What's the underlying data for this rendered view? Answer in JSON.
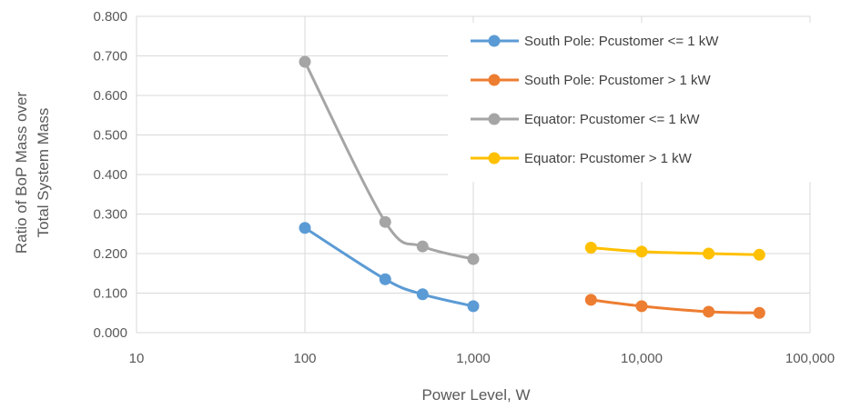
{
  "chart_data": {
    "type": "line",
    "xscale": "log",
    "xlim": [
      10,
      100000
    ],
    "ylim": [
      0,
      0.8
    ],
    "yticks": [
      "0.000",
      "0.100",
      "0.200",
      "0.300",
      "0.400",
      "0.500",
      "0.600",
      "0.700",
      "0.800"
    ],
    "xticks": [
      "10",
      "100",
      "1,000",
      "10,000",
      "100,000"
    ],
    "xlabel": "Power Level, W",
    "ylabel_line1": "Ratio of BoP Mass over",
    "ylabel_line2": "Total System Mass",
    "grid": true,
    "legend_position": "top-right",
    "series": [
      {
        "name": "South Pole: Pcustomer <= 1 kW",
        "color": "#5b9bd5",
        "x": [
          100,
          300,
          500,
          1000
        ],
        "y": [
          0.265,
          0.135,
          0.097,
          0.067
        ]
      },
      {
        "name": "South Pole: Pcustomer > 1 kW",
        "color": "#ed7d31",
        "x": [
          5000,
          10000,
          25000,
          50000
        ],
        "y": [
          0.083,
          0.067,
          0.053,
          0.05
        ]
      },
      {
        "name": "Equator: Pcustomer <= 1 kW",
        "color": "#a5a5a5",
        "x": [
          100,
          300,
          500,
          1000
        ],
        "y": [
          0.685,
          0.28,
          0.218,
          0.186
        ]
      },
      {
        "name": "Equator: Pcustomer > 1 kW",
        "color": "#ffc000",
        "x": [
          5000,
          10000,
          25000,
          50000
        ],
        "y": [
          0.215,
          0.205,
          0.2,
          0.197
        ]
      }
    ]
  }
}
